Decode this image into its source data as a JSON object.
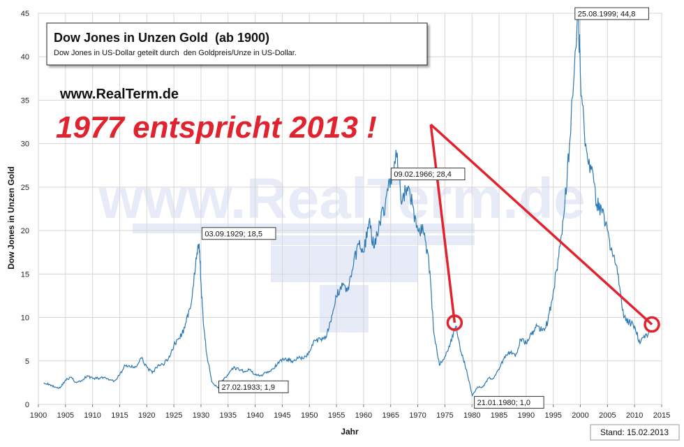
{
  "chart_data": {
    "type": "line",
    "title": "Dow Jones in Unzen Gold  (ab 1900)",
    "subtitle": "Dow Jones in US-Dollar geteilt durch  den Goldpreis/Unze in US-Dollar.",
    "xlabel": "Jahr",
    "ylabel": "Dow Jones in Unzen Gold",
    "xlim": [
      1900,
      2015
    ],
    "ylim": [
      0,
      45
    ],
    "x_ticks": [
      "1900",
      "1905",
      "1910",
      "1915",
      "1920",
      "1925",
      "1930",
      "1935",
      "1940",
      "1945",
      "1950",
      "1955",
      "1960",
      "1965",
      "1970",
      "1975",
      "1980",
      "1985",
      "1990",
      "1995",
      "2000",
      "2005",
      "2010",
      "2015"
    ],
    "y_ticks": [
      "0",
      "5",
      "10",
      "15",
      "20",
      "25",
      "30",
      "35",
      "40",
      "45"
    ],
    "grid": true,
    "legend": "none",
    "series_color": "#2a78b4",
    "accent_color": "#e0232e",
    "x": [
      1901,
      1902,
      1903,
      1904,
      1905,
      1906,
      1907,
      1908,
      1909,
      1910,
      1911,
      1912,
      1913,
      1914,
      1915,
      1916,
      1917,
      1918,
      1919,
      1920,
      1921,
      1922,
      1923,
      1924,
      1925,
      1926,
      1927,
      1928,
      1929,
      1929.67,
      1930,
      1930.5,
      1931,
      1932,
      1933.16,
      1934,
      1935,
      1936,
      1937,
      1938,
      1939,
      1940,
      1941,
      1942,
      1943,
      1944,
      1945,
      1946,
      1947,
      1948,
      1949,
      1950,
      1951,
      1952,
      1953,
      1954,
      1955,
      1956,
      1957,
      1958,
      1959,
      1960,
      1961,
      1962,
      1963,
      1964,
      1965,
      1966.11,
      1967,
      1968,
      1969,
      1970,
      1971,
      1972,
      1973,
      1974,
      1975,
      1976,
      1977,
      1978,
      1979,
      1980.05,
      1981,
      1982,
      1983,
      1984,
      1985,
      1986,
      1987,
      1988,
      1989,
      1990,
      1991,
      1992,
      1993,
      1994,
      1995,
      1996,
      1997,
      1998,
      1999.65,
      2000,
      2001,
      2002,
      2003,
      2004,
      2005,
      2006,
      2007,
      2008,
      2009,
      2010,
      2011,
      2012,
      2013
    ],
    "y": [
      2.5,
      2.3,
      2.0,
      1.9,
      2.8,
      3.1,
      2.5,
      2.7,
      3.3,
      3.0,
      3.0,
      3.1,
      2.8,
      2.7,
      3.4,
      4.5,
      4.3,
      4.3,
      5.3,
      4.3,
      3.6,
      4.4,
      4.6,
      5.3,
      6.8,
      7.6,
      8.8,
      11.0,
      16.0,
      18.5,
      14.0,
      9.0,
      6.0,
      2.6,
      1.9,
      2.8,
      3.4,
      4.2,
      4.0,
      3.8,
      4.0,
      3.4,
      3.3,
      3.7,
      4.0,
      4.5,
      5.2,
      5.2,
      5.0,
      5.3,
      5.3,
      6.0,
      7.4,
      7.5,
      7.8,
      9.5,
      12.4,
      14.0,
      13.0,
      15.5,
      18.5,
      17.5,
      21.0,
      18.0,
      21.0,
      23.0,
      26.0,
      28.4,
      23.0,
      25.0,
      23.0,
      20.0,
      20.0,
      17.0,
      8.0,
      4.5,
      5.5,
      7.0,
      9.0,
      6.0,
      4.0,
      1.0,
      2.0,
      2.0,
      3.0,
      3.0,
      4.0,
      5.5,
      6.0,
      5.5,
      7.5,
      7.0,
      8.0,
      9.0,
      8.5,
      9.5,
      13.0,
      17.0,
      22.0,
      30.0,
      44.8,
      38.0,
      30.0,
      27.0,
      23.0,
      22.0,
      20.0,
      17.0,
      15.0,
      10.0,
      9.5,
      9.0,
      7.0,
      8.0,
      8.3
    ],
    "annotations": [
      {
        "label": "03.09.1929; 18,5",
        "x": 1929.67,
        "y": 18.5
      },
      {
        "label": "27.02.1933; 1,9",
        "x": 1933.16,
        "y": 1.9
      },
      {
        "label": "09.02.1966; 28,4",
        "x": 1966.11,
        "y": 28.4
      },
      {
        "label": "21.01.1980; 1,0",
        "x": 1980.05,
        "y": 1.0
      },
      {
        "label": "25.08.1999; 44,8",
        "x": 1999.65,
        "y": 44.8
      }
    ],
    "headline": "1977 entspricht 2013 !",
    "website": "www.RealTerm.de",
    "watermark": "www.RealTerm.de",
    "pointer_origin": {
      "x": 1972.4,
      "y": 32.2
    },
    "highlight_points": [
      {
        "x": 1976.8,
        "y": 9.4
      },
      {
        "x": 2013.2,
        "y": 9.2
      }
    ],
    "footer": "Stand: 15.02.2013"
  }
}
